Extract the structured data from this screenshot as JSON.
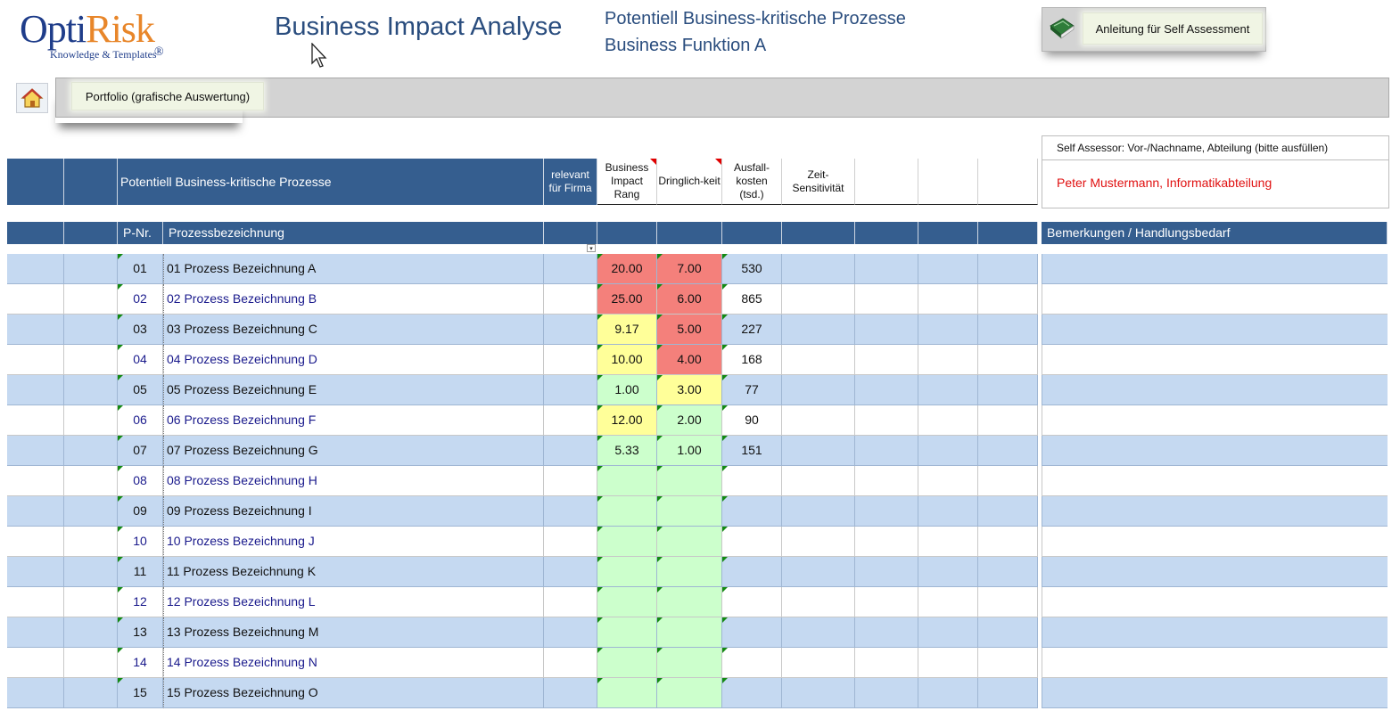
{
  "header": {
    "logo_brand_part1": "Opti",
    "logo_brand_part2": "Risk",
    "logo_registered": "®",
    "logo_tagline": "Knowledge & Templates",
    "title": "Business Impact Analyse",
    "subtitle_line1": "Potentiell Business-kritische Prozesse",
    "subtitle_line2": "Business Funktion A",
    "anleitung_label": "Anleitung  für Self Assessment",
    "anleitung_icon": "book-icon",
    "home_icon": "home-icon",
    "portfolio_label": "Portfolio (grafische Auswertung)"
  },
  "self_assessor": {
    "label": "Self Assessor: Vor-/Nachname, Abteilung (bitte ausfüllen)",
    "value": "Peter Mustermann, Informatikabteilung"
  },
  "table": {
    "group_title": "Potentiell Business-kritische Prozesse",
    "col_relevant": "relevant für Firma",
    "col_bir": "Business Impact Rang",
    "col_dringlichkeit": "Dringlich-keit",
    "col_ausfall": "Ausfall-kosten (tsd.)",
    "col_zeit": "Zeit-Sensitivität",
    "col_pnr": "P-Nr.",
    "col_bezeichnung": "Prozessbezeichnung",
    "col_bemerkungen": "Bemerkungen / Handlungsbedarf",
    "filter_arrow": "▾",
    "rows": [
      {
        "nr": "01",
        "name": "01 Prozess Bezeichnung A",
        "bir": "20.00",
        "dr": "7.00",
        "ak": "530"
      },
      {
        "nr": "02",
        "name": "02 Prozess Bezeichnung B",
        "bir": "25.00",
        "dr": "6.00",
        "ak": "865"
      },
      {
        "nr": "03",
        "name": "03 Prozess Bezeichnung C",
        "bir": "9.17",
        "dr": "5.00",
        "ak": "227"
      },
      {
        "nr": "04",
        "name": "04 Prozess Bezeichnung D",
        "bir": "10.00",
        "dr": "4.00",
        "ak": "168"
      },
      {
        "nr": "05",
        "name": "05 Prozess Bezeichnung E",
        "bir": "1.00",
        "dr": "3.00",
        "ak": "77"
      },
      {
        "nr": "06",
        "name": "06 Prozess Bezeichnung F",
        "bir": "12.00",
        "dr": "2.00",
        "ak": "90"
      },
      {
        "nr": "07",
        "name": "07 Prozess Bezeichnung G",
        "bir": "5.33",
        "dr": "1.00",
        "ak": "151"
      },
      {
        "nr": "08",
        "name": "08 Prozess Bezeichnung H",
        "bir": "",
        "dr": "",
        "ak": ""
      },
      {
        "nr": "09",
        "name": "09 Prozess Bezeichnung I",
        "bir": "",
        "dr": "",
        "ak": ""
      },
      {
        "nr": "10",
        "name": "10 Prozess Bezeichnung J",
        "bir": "",
        "dr": "",
        "ak": ""
      },
      {
        "nr": "11",
        "name": "11 Prozess Bezeichnung K",
        "bir": "",
        "dr": "",
        "ak": ""
      },
      {
        "nr": "12",
        "name": "12 Prozess Bezeichnung L",
        "bir": "",
        "dr": "",
        "ak": ""
      },
      {
        "nr": "13",
        "name": "13 Prozess Bezeichnung M",
        "bir": "",
        "dr": "",
        "ak": ""
      },
      {
        "nr": "14",
        "name": "14 Prozess Bezeichnung N",
        "bir": "",
        "dr": "",
        "ak": ""
      },
      {
        "nr": "15",
        "name": "15 Prozess Bezeichnung O",
        "bir": "",
        "dr": "",
        "ak": ""
      }
    ]
  },
  "colors": {
    "header_blue": "#355e8f",
    "row_shade": "#c5d9f1",
    "high": "#f4807b",
    "medium": "#ffff99",
    "low": "#ccffcc",
    "assessor_red": "#e01010"
  }
}
